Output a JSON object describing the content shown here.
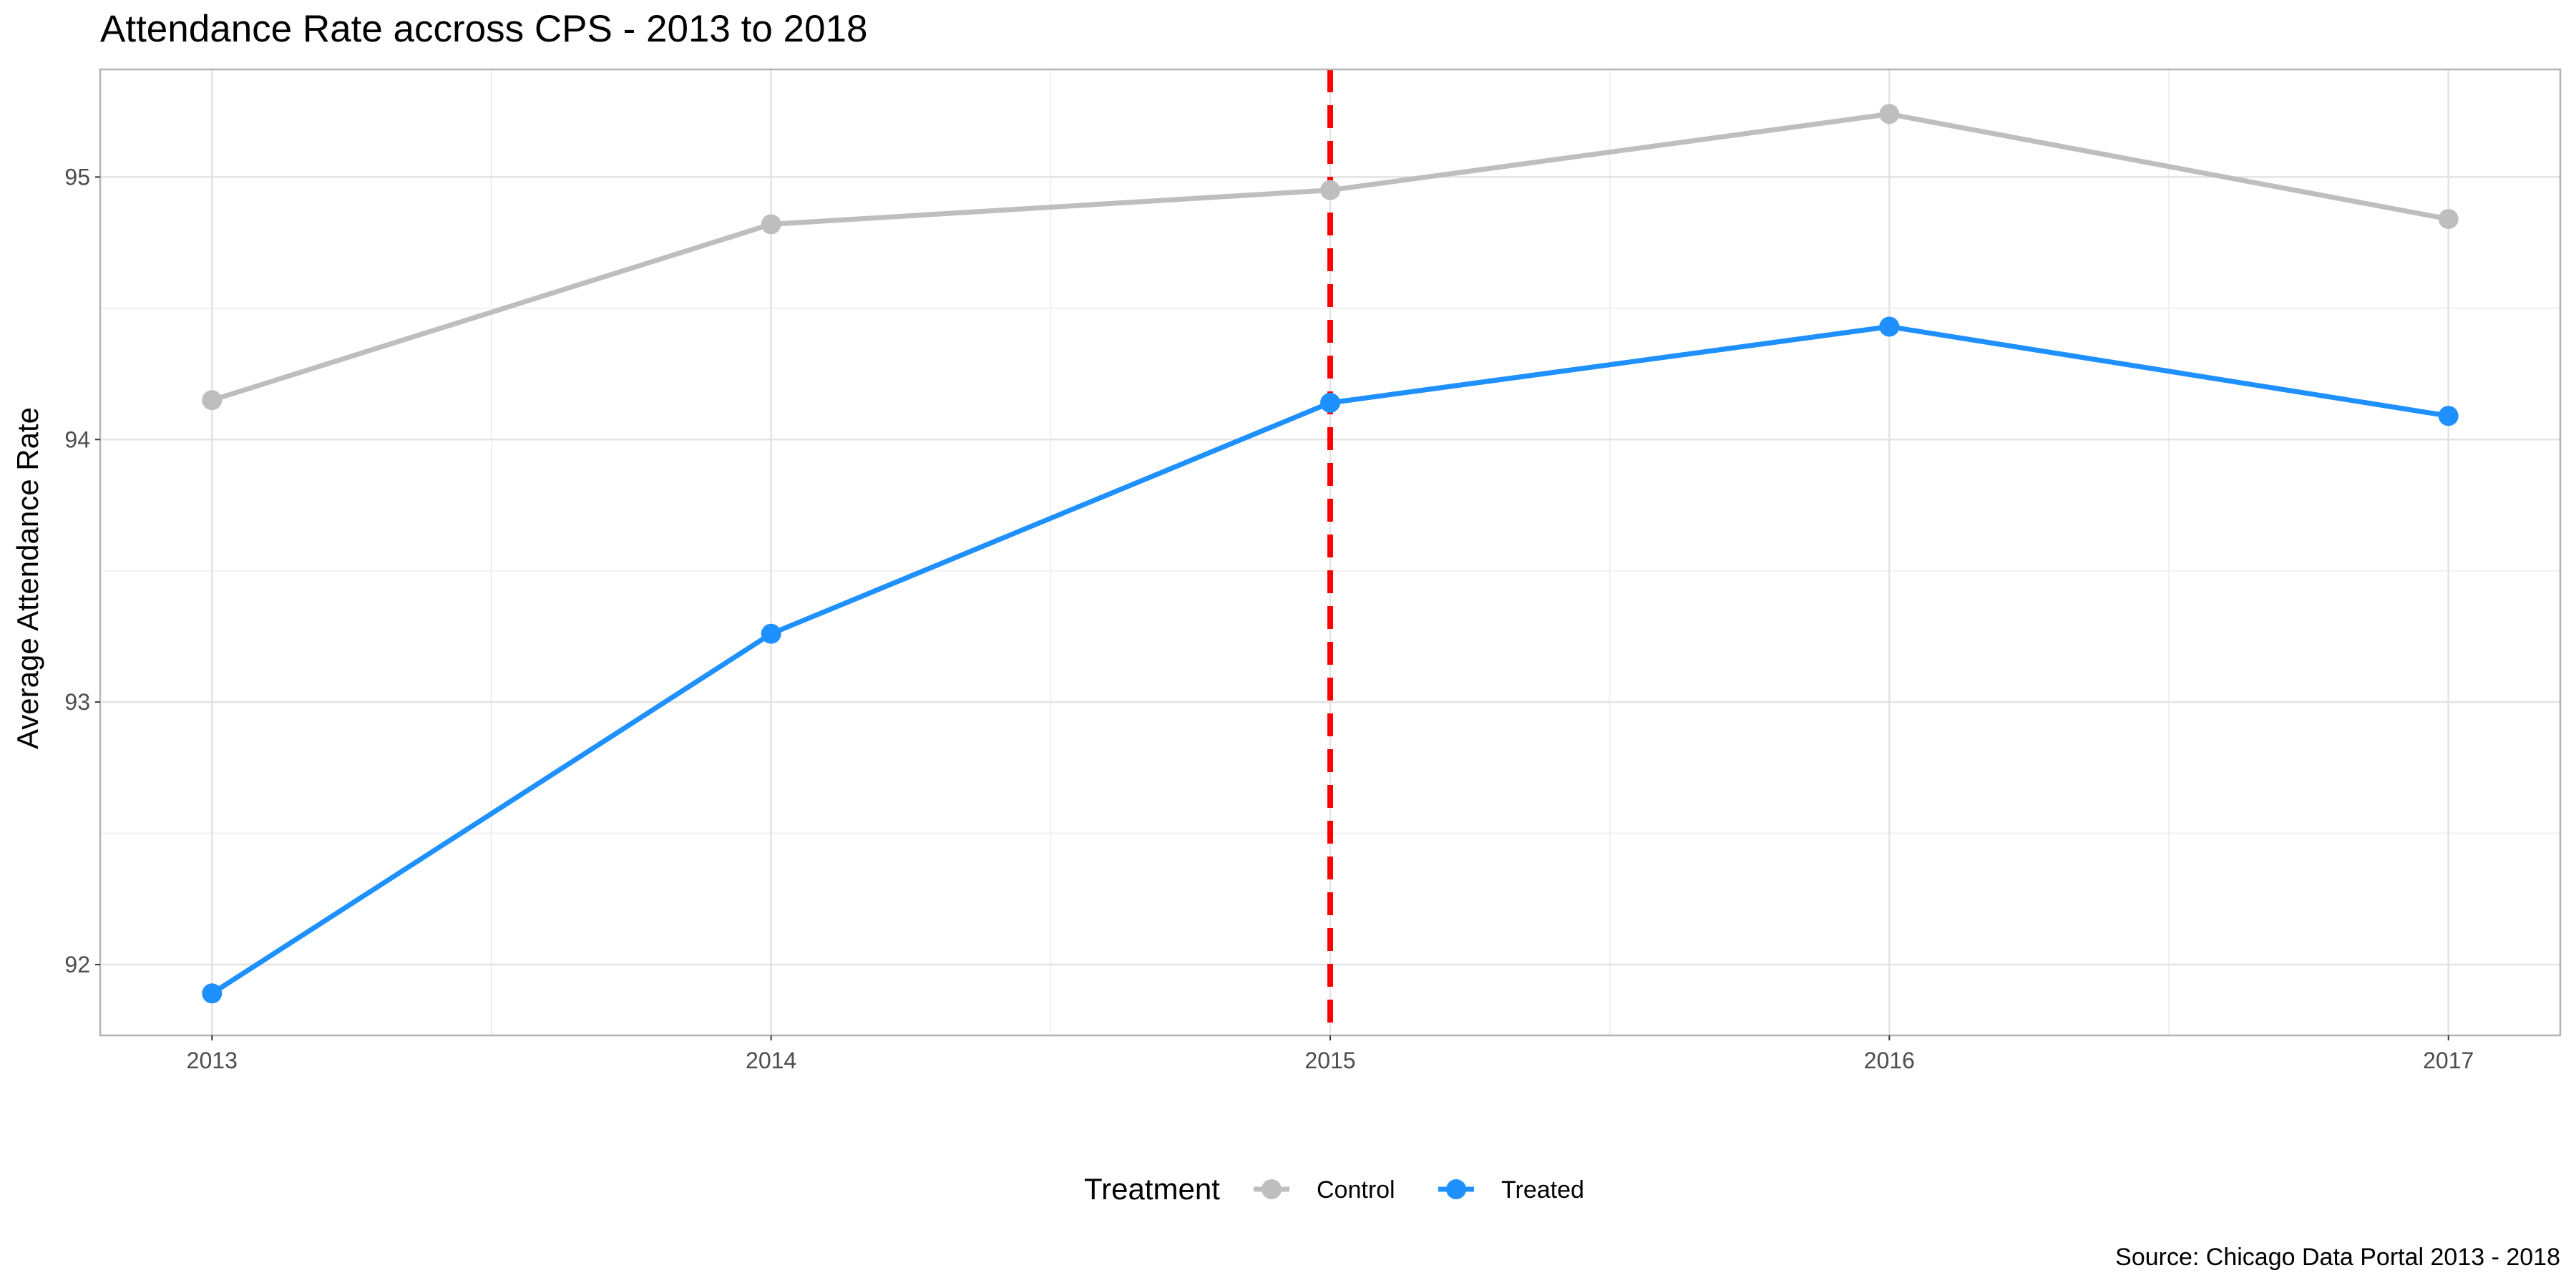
{
  "chart_data": {
    "type": "line",
    "title": "Attendance Rate accross CPS - 2013 to 2018",
    "xlabel": "",
    "ylabel": "Average Attendance Rate",
    "caption": "Source: Chicago Data Portal 2013 - 2018",
    "x": [
      2013,
      2014,
      2015,
      2016,
      2017
    ],
    "x_tick_labels": [
      "2013",
      "2014",
      "2015",
      "2016",
      "2017"
    ],
    "y_ticks": [
      92,
      93,
      94,
      95
    ],
    "y_tick_labels": [
      "92",
      "93",
      "94",
      "95"
    ],
    "xlim": [
      2012.8,
      2017.2
    ],
    "ylim": [
      91.73,
      95.41
    ],
    "grid": true,
    "legend": {
      "title": "Treatment",
      "placement": "bottom"
    },
    "series": [
      {
        "name": "Control",
        "color": "#bebebe",
        "values": [
          94.15,
          94.82,
          94.95,
          95.24,
          94.84
        ]
      },
      {
        "name": "Treated",
        "color": "#1e90ff",
        "values": [
          91.89,
          93.26,
          94.14,
          94.43,
          94.09
        ]
      }
    ],
    "reference_line": {
      "type": "vertical",
      "x": 2015,
      "color": "#ff0000",
      "style": "dashed"
    }
  }
}
